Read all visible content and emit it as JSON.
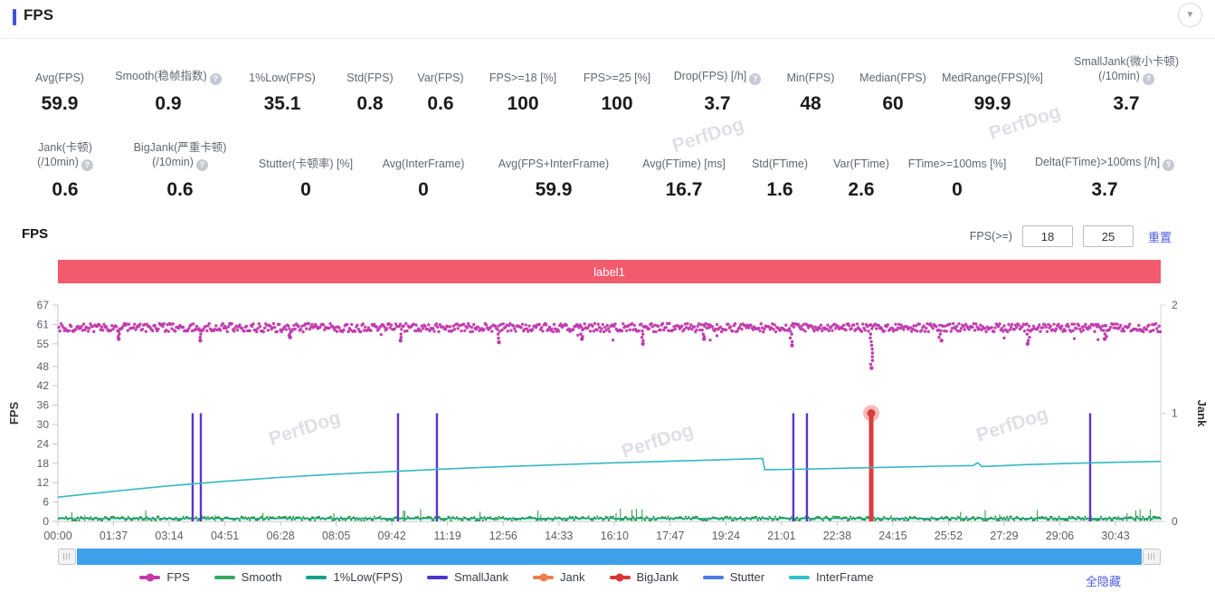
{
  "header": {
    "title": "FPS"
  },
  "collapse_button": {
    "icon": "▼"
  },
  "help_glyph": "?",
  "metrics_row1": [
    {
      "label": "Avg(FPS)",
      "value": "59.9"
    },
    {
      "label": "Smooth(稳帧指数)",
      "help": true,
      "value": "0.9"
    },
    {
      "label": "1%Low(FPS)",
      "value": "35.1"
    },
    {
      "label": "Std(FPS)",
      "value": "0.8"
    },
    {
      "label": "Var(FPS)",
      "value": "0.6"
    },
    {
      "label": "FPS>=18 [%]",
      "value": "100"
    },
    {
      "label": "FPS>=25 [%]",
      "value": "100"
    },
    {
      "label": "Drop(FPS) [/h]",
      "help": true,
      "value": "3.7"
    },
    {
      "label": "Min(FPS)",
      "value": "48"
    },
    {
      "label": "Median(FPS)",
      "value": "60"
    },
    {
      "label": "MedRange(FPS)[%]",
      "value": "99.9"
    },
    {
      "label": "SmallJank(微小卡顿)",
      "label2": "(/10min)",
      "help": true,
      "value": "3.7"
    }
  ],
  "metrics_row2": [
    {
      "label": "Jank(卡顿)",
      "label2": "(/10min)",
      "help": true,
      "value": "0.6"
    },
    {
      "label": "BigJank(严重卡顿)",
      "label2": "(/10min)",
      "help": true,
      "value": "0.6"
    },
    {
      "label": "Stutter(卡顿率) [%]",
      "value": "0"
    },
    {
      "label": "Avg(InterFrame)",
      "value": "0"
    },
    {
      "label": "Avg(FPS+InterFrame)",
      "value": "59.9"
    },
    {
      "label": "Avg(FTime) [ms]",
      "value": "16.7"
    },
    {
      "label": "Std(FTime)",
      "value": "1.6"
    },
    {
      "label": "Var(FTime)",
      "value": "2.6"
    },
    {
      "label": "FTime>=100ms [%]",
      "value": "0"
    },
    {
      "label": "Delta(FTime)>100ms [/h]",
      "help": true,
      "value": "3.7"
    }
  ],
  "chart_section": {
    "title": "FPS",
    "filter_label": "FPS(>=)",
    "filter_inputs": [
      "18",
      "25"
    ],
    "reset_label": "重置",
    "banner_text": "label1",
    "banner_color": "#f25b6e",
    "hide_all_label": "全隐藏",
    "watermark": "PerfDog"
  },
  "legend": [
    {
      "label": "FPS",
      "color": "#c13ba6",
      "dot": true
    },
    {
      "label": "Smooth",
      "color": "#35a863",
      "dot": false
    },
    {
      "label": "1%Low(FPS)",
      "color": "#12a385",
      "dot": false
    },
    {
      "label": "SmallJank",
      "color": "#4f34cf",
      "dot": false
    },
    {
      "label": "Jank",
      "color": "#ed7d4a",
      "dot": true
    },
    {
      "label": "BigJank",
      "color": "#d93636",
      "dot": true
    },
    {
      "label": "Stutter",
      "color": "#4e7de0",
      "dot": false
    },
    {
      "label": "InterFrame",
      "color": "#2fc2cd",
      "dot": false
    }
  ],
  "chart_data": {
    "type": "line",
    "title": "FPS timeline with Jank events",
    "x_axis": {
      "ticks": [
        "00:00",
        "01:37",
        "03:14",
        "04:51",
        "06:28",
        "08:05",
        "09:42",
        "11:19",
        "12:56",
        "14:33",
        "16:10",
        "17:47",
        "19:24",
        "21:01",
        "22:38",
        "24:15",
        "25:52",
        "27:29",
        "29:06",
        "30:43"
      ],
      "tick_interval_s": 97,
      "ticks_span_fraction": 0.959
    },
    "y_axis_left": {
      "label": "FPS",
      "ticks": [
        0,
        6,
        12,
        18,
        24,
        30,
        36,
        42,
        48,
        55,
        61,
        67
      ],
      "range": [
        0,
        67
      ]
    },
    "y_axis_right": {
      "label": "Jank",
      "ticks": [
        0,
        1,
        2
      ],
      "range": [
        0,
        2
      ]
    },
    "grid": false,
    "legend_position": "bottom",
    "series": [
      {
        "name": "FPS",
        "color": "#c03aac",
        "style": "noisy-band",
        "axis": "left",
        "base": 60,
        "noise": 1.3,
        "dips": [
          {
            "t": 0.055,
            "v": 56.5
          },
          {
            "t": 0.13,
            "v": 56
          },
          {
            "t": 0.21,
            "v": 57
          },
          {
            "t": 0.31,
            "v": 56
          },
          {
            "t": 0.4,
            "v": 55.5
          },
          {
            "t": 0.475,
            "v": 56.5
          },
          {
            "t": 0.53,
            "v": 55
          },
          {
            "t": 0.585,
            "v": 56.5
          },
          {
            "t": 0.665,
            "v": 54.5
          },
          {
            "t": 0.7375,
            "v": 47.5
          },
          {
            "t": 0.8,
            "v": 56
          },
          {
            "t": 0.88,
            "v": 55
          },
          {
            "t": 0.95,
            "v": 56.5
          }
        ]
      },
      {
        "name": "Smooth",
        "color": "#27963c",
        "style": "grass-band",
        "axis": "left",
        "base": 1,
        "noise": 1.2,
        "max_spike": 4
      },
      {
        "name": "1%Low(FPS)",
        "color": "#0aa08b",
        "style": "flat-line",
        "axis": "left",
        "value": 0.9
      },
      {
        "name": "SmallJank",
        "color": "#5c35cc",
        "style": "spikes",
        "axis": "right",
        "value": 1,
        "events_t": [
          0.1222,
          0.1296,
          0.3084,
          0.3437,
          0.6669,
          0.6792,
          0.7375,
          0.936
        ]
      },
      {
        "name": "Jank",
        "color": "#ed7d4a",
        "style": "spikes",
        "axis": "right",
        "value": 1,
        "events_t": []
      },
      {
        "name": "BigJank",
        "color": "#dc3c3c",
        "style": "spikes",
        "axis": "right",
        "value": 1,
        "events_t": [
          0.7375
        ],
        "highlight_marker": true
      },
      {
        "name": "Stutter",
        "color": "#4e7de0",
        "style": "flat-line",
        "axis": "left",
        "value": null
      },
      {
        "name": "InterFrame",
        "color": "#35b8c4",
        "style": "line",
        "axis": "left",
        "points": [
          [
            0,
            7.5
          ],
          [
            0.05,
            9.3
          ],
          [
            0.1,
            11.0
          ],
          [
            0.15,
            12.4
          ],
          [
            0.2,
            13.6
          ],
          [
            0.25,
            14.6
          ],
          [
            0.3,
            15.4
          ],
          [
            0.35,
            16.2
          ],
          [
            0.4,
            16.9
          ],
          [
            0.45,
            17.5
          ],
          [
            0.5,
            18.1
          ],
          [
            0.55,
            18.6
          ],
          [
            0.6,
            19.1
          ],
          [
            0.63,
            19.4
          ],
          [
            0.639,
            19.5
          ],
          [
            0.641,
            16.0
          ],
          [
            0.68,
            16.2
          ],
          [
            0.72,
            16.5
          ],
          [
            0.76,
            16.8
          ],
          [
            0.8,
            17.1
          ],
          [
            0.83,
            17.3
          ],
          [
            0.834,
            18.2
          ],
          [
            0.838,
            17.0
          ],
          [
            0.88,
            17.6
          ],
          [
            0.92,
            18.0
          ],
          [
            0.96,
            18.3
          ],
          [
            1.0,
            18.6
          ]
        ]
      }
    ]
  }
}
